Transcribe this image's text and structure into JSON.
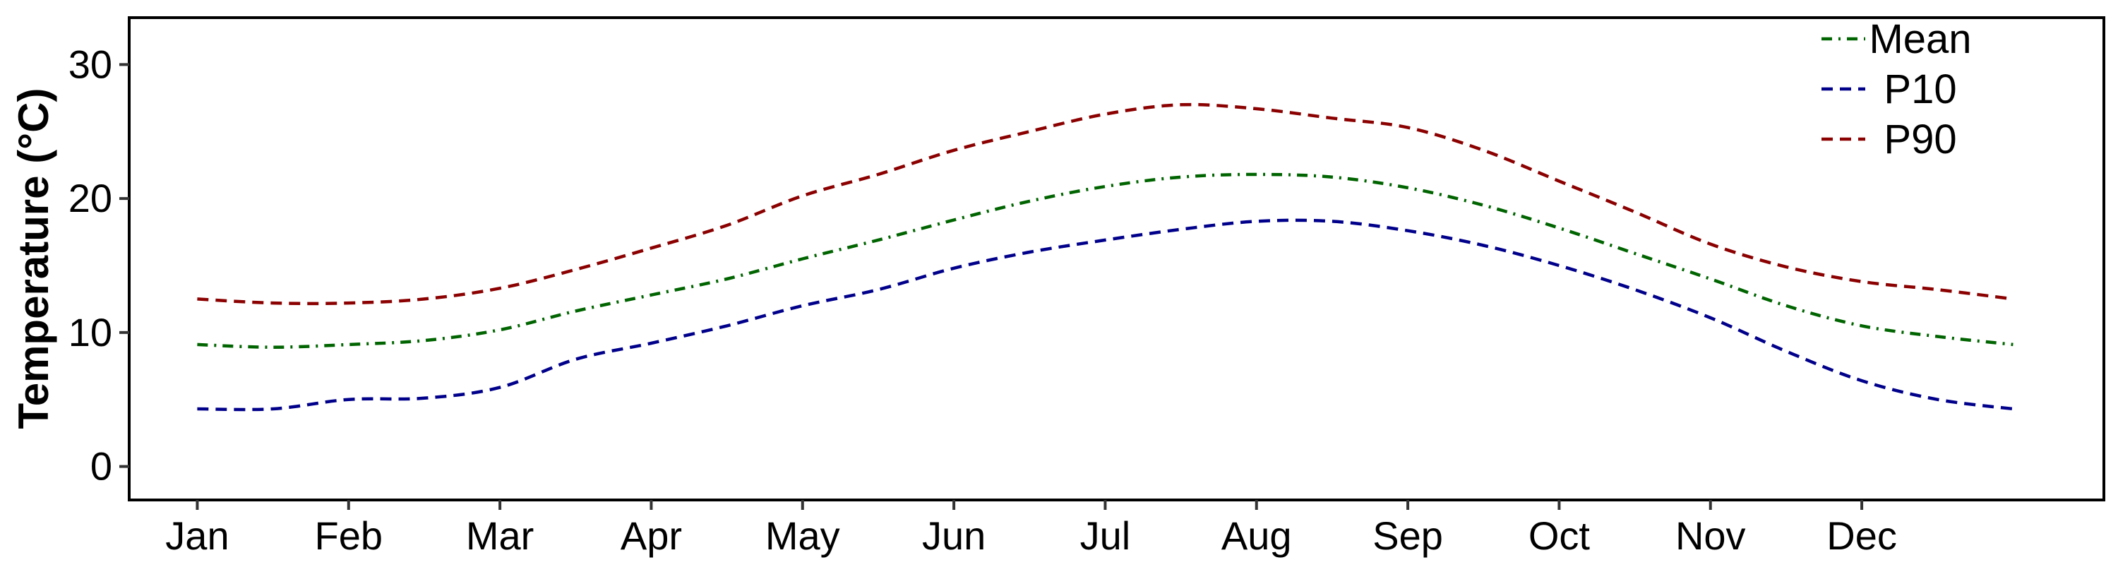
{
  "chart_data": {
    "type": "line",
    "title": "",
    "xlabel": "",
    "ylabel": "Temperature (°C)",
    "x_categories": [
      "Jan",
      "Feb",
      "Mar",
      "Apr",
      "May",
      "Jun",
      "Jul",
      "Aug",
      "Sep",
      "Oct",
      "Nov",
      "Dec"
    ],
    "yticks": [
      0,
      10,
      20,
      30
    ],
    "ylim": [
      -2.5,
      33.5
    ],
    "grid": false,
    "legend_position": "top-right",
    "series": [
      {
        "name": "Mean",
        "color": "#006400",
        "style": "dash-dot",
        "x": [
          1,
          1.5,
          2,
          2.5,
          3,
          3.5,
          4,
          4.5,
          5,
          5.5,
          6,
          6.5,
          7,
          7.5,
          8,
          8.5,
          9,
          9.5,
          10,
          10.5,
          11,
          11.5,
          12,
          12.5,
          13
        ],
        "values": [
          9.1,
          8.9,
          9.1,
          9.4,
          10.2,
          11.6,
          12.8,
          14.0,
          15.5,
          16.9,
          18.4,
          19.8,
          20.9,
          21.6,
          21.8,
          21.6,
          20.8,
          19.5,
          17.8,
          15.9,
          14.0,
          12.0,
          10.5,
          9.7,
          9.1
        ]
      },
      {
        "name": "P10",
        "color": "#00008B",
        "style": "dashed",
        "x": [
          1,
          1.5,
          2,
          2.5,
          3,
          3.5,
          4,
          4.5,
          5,
          5.5,
          6,
          6.5,
          7,
          7.5,
          8,
          8.5,
          9,
          9.5,
          10,
          10.5,
          11,
          11.5,
          12,
          12.5,
          13
        ],
        "values": [
          4.3,
          4.3,
          5.0,
          5.1,
          5.9,
          8.0,
          9.2,
          10.5,
          12.0,
          13.2,
          14.8,
          16.0,
          16.9,
          17.7,
          18.3,
          18.3,
          17.6,
          16.5,
          15.0,
          13.2,
          11.1,
          8.6,
          6.4,
          5.0,
          4.3
        ]
      },
      {
        "name": "P90",
        "color": "#8B0000",
        "style": "dashed",
        "x": [
          1,
          1.5,
          2,
          2.5,
          3,
          3.5,
          4,
          4.5,
          5,
          5.5,
          6,
          6.5,
          7,
          7.5,
          8,
          8.5,
          9,
          9.5,
          10,
          10.5,
          11,
          11.5,
          12,
          12.5,
          13
        ],
        "values": [
          12.5,
          12.2,
          12.2,
          12.5,
          13.3,
          14.7,
          16.3,
          18.0,
          20.2,
          21.8,
          23.6,
          25.0,
          26.3,
          27.0,
          26.7,
          26.0,
          25.3,
          23.6,
          21.3,
          19.0,
          16.6,
          14.9,
          13.8,
          13.2,
          12.5
        ]
      }
    ]
  }
}
